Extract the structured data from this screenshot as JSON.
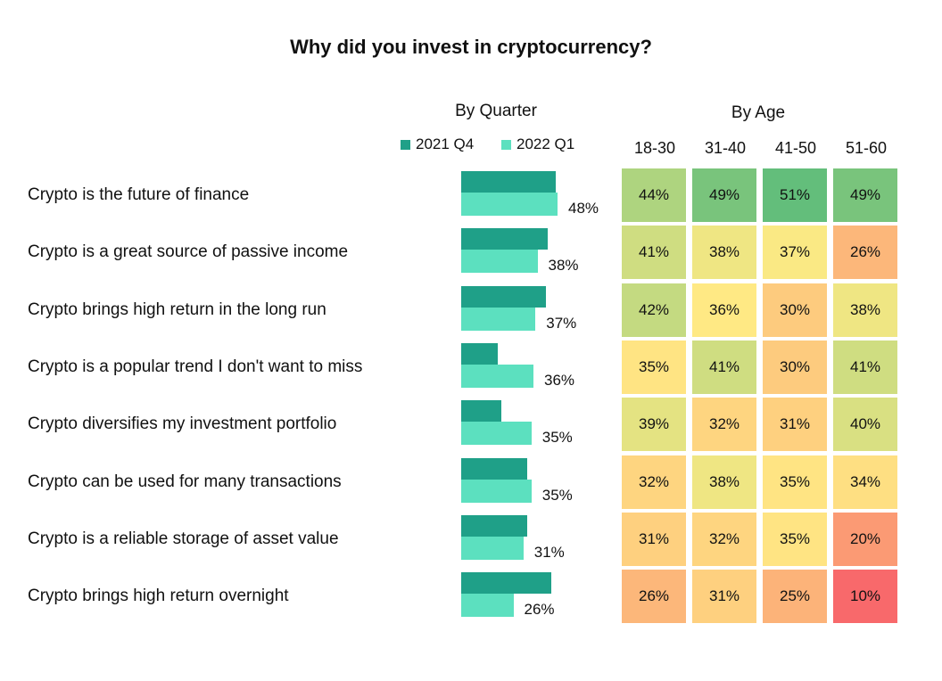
{
  "chart_data": {
    "type": "bar",
    "title": "Why did you invest in cryptocurrency?",
    "quarter_header": "By Quarter",
    "age_header": "By Age",
    "categories": [
      "Crypto is the future of finance",
      "Crypto is a great source of passive income",
      "Crypto brings high return in the long run",
      "Crypto is a popular trend I don't want to miss",
      "Crypto diversifies my investment portfolio",
      "Crypto can be used for many transactions",
      "Crypto is a reliable storage of asset value",
      "Crypto brings high return overnight"
    ],
    "series": [
      {
        "name": "2021 Q4",
        "color": "#1fa088",
        "values": [
          47,
          43,
          42,
          18,
          20,
          33,
          33,
          45
        ]
      },
      {
        "name": "2022 Q1",
        "color": "#5ce0bf",
        "values": [
          48,
          38,
          37,
          36,
          35,
          35,
          31,
          26
        ]
      }
    ],
    "labeled_values": [
      "48%",
      "38%",
      "37%",
      "36%",
      "35%",
      "35%",
      "31%",
      "26%"
    ],
    "xlim": [
      0,
      50
    ],
    "heatmap": {
      "type": "heatmap",
      "columns": [
        "18-30",
        "31-40",
        "41-50",
        "51-60"
      ],
      "values": [
        [
          44,
          49,
          51,
          49
        ],
        [
          41,
          38,
          37,
          26
        ],
        [
          42,
          36,
          30,
          38
        ],
        [
          35,
          41,
          30,
          41
        ],
        [
          39,
          32,
          31,
          40
        ],
        [
          32,
          38,
          35,
          34
        ],
        [
          31,
          32,
          35,
          20
        ],
        [
          26,
          31,
          25,
          10
        ]
      ],
      "color_scale": {
        "low": "#f8696b",
        "mid": "#ffeb84",
        "high": "#63be7b"
      }
    }
  }
}
